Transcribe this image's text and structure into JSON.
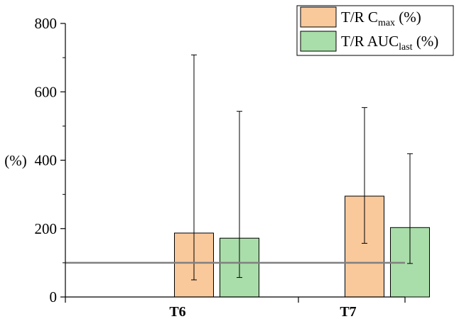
{
  "chart_data": {
    "type": "bar",
    "title": "",
    "xlabel": "",
    "ylabel": "(%)",
    "ylim": [
      0,
      800
    ],
    "yticks": [
      0,
      200,
      400,
      600,
      800
    ],
    "categories": [
      "T6",
      "T7"
    ],
    "series": [
      {
        "name_main": "T/R C",
        "name_sub": "max",
        "name_suffix": " (%)",
        "color": "#F9C89B",
        "values": [
          187,
          295
        ],
        "error_low": [
          50,
          157
        ],
        "error_high": [
          708,
          554
        ]
      },
      {
        "name_main": "T/R AUC",
        "name_sub": "last",
        "name_suffix": " (%)",
        "color": "#A9DDA9",
        "values": [
          172,
          203
        ],
        "error_low": [
          57,
          98
        ],
        "error_high": [
          543,
          419
        ]
      }
    ],
    "reference_line": {
      "y": 100,
      "color": "#808080"
    },
    "grid": false,
    "legend_position": "top-right"
  }
}
